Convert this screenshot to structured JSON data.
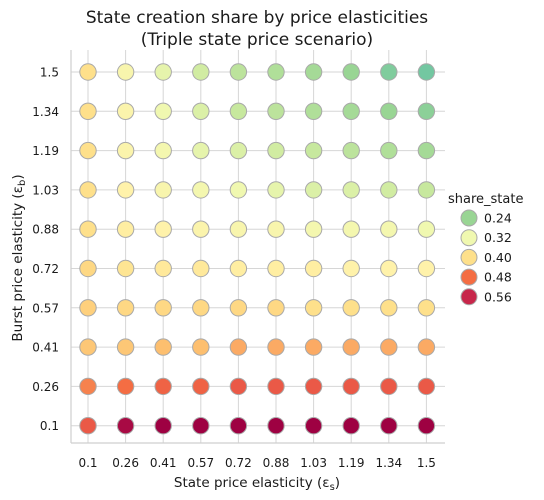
{
  "chart_data": {
    "type": "scatter",
    "title_line1": "State creation share by price elasticities",
    "title_line2": "(Triple state price scenario)",
    "xlabel": "State price elasticity (ε",
    "xlabel_sub": "s",
    "xlabel_end": ")",
    "ylabel": "Burst price elasticity (ε",
    "ylabel_sub": "b",
    "ylabel_end": ")",
    "x_ticks": [
      "0.1",
      "0.26",
      "0.41",
      "0.57",
      "0.72",
      "0.88",
      "1.03",
      "1.19",
      "1.34",
      "1.5"
    ],
    "y_ticks": [
      "0.1",
      "0.26",
      "0.41",
      "0.57",
      "0.72",
      "0.88",
      "1.03",
      "1.19",
      "1.34",
      "1.5"
    ],
    "grid": true,
    "legend": {
      "title": "share_state",
      "placement": "right",
      "items": [
        {
          "label": "0.24",
          "color": "#99d594"
        },
        {
          "label": "0.32",
          "color": "#f0f8b0"
        },
        {
          "label": "0.40",
          "color": "#fee08b"
        },
        {
          "label": "0.48",
          "color": "#f46d43"
        },
        {
          "label": "0.56",
          "color": "#c7264a"
        }
      ]
    },
    "colors": [
      {
        "value": 0.2,
        "color": "#66c2a5"
      },
      {
        "value": 0.24,
        "color": "#99d594"
      },
      {
        "value": 0.28,
        "color": "#c7e89e"
      },
      {
        "value": 0.32,
        "color": "#f0f8b0"
      },
      {
        "value": 0.36,
        "color": "#fff2aa"
      },
      {
        "value": 0.4,
        "color": "#fee08b"
      },
      {
        "value": 0.44,
        "color": "#fdbf6f"
      },
      {
        "value": 0.48,
        "color": "#f46d43"
      },
      {
        "value": 0.52,
        "color": "#e0454a"
      },
      {
        "value": 0.56,
        "color": "#c7264a"
      },
      {
        "value": 0.6,
        "color": "#9e0142"
      }
    ],
    "share_state": [
      [
        0.5,
        0.59,
        0.6,
        0.6,
        0.61,
        0.61,
        0.61,
        0.61,
        0.61,
        0.61
      ],
      [
        0.47,
        0.48,
        0.49,
        0.49,
        0.5,
        0.5,
        0.5,
        0.5,
        0.5,
        0.5
      ],
      [
        0.43,
        0.43,
        0.44,
        0.44,
        0.45,
        0.45,
        0.45,
        0.45,
        0.45,
        0.45
      ],
      [
        0.42,
        0.41,
        0.41,
        0.41,
        0.41,
        0.41,
        0.4,
        0.4,
        0.4,
        0.4
      ],
      [
        0.41,
        0.39,
        0.38,
        0.38,
        0.37,
        0.37,
        0.37,
        0.36,
        0.36,
        0.36
      ],
      [
        0.4,
        0.37,
        0.36,
        0.35,
        0.34,
        0.34,
        0.33,
        0.33,
        0.33,
        0.32
      ],
      [
        0.4,
        0.36,
        0.34,
        0.33,
        0.32,
        0.31,
        0.3,
        0.3,
        0.29,
        0.28
      ],
      [
        0.4,
        0.35,
        0.33,
        0.31,
        0.3,
        0.29,
        0.28,
        0.27,
        0.26,
        0.25
      ],
      [
        0.4,
        0.35,
        0.32,
        0.3,
        0.28,
        0.27,
        0.26,
        0.25,
        0.24,
        0.23
      ],
      [
        0.4,
        0.34,
        0.31,
        0.29,
        0.27,
        0.26,
        0.25,
        0.24,
        0.22,
        0.21
      ]
    ]
  }
}
